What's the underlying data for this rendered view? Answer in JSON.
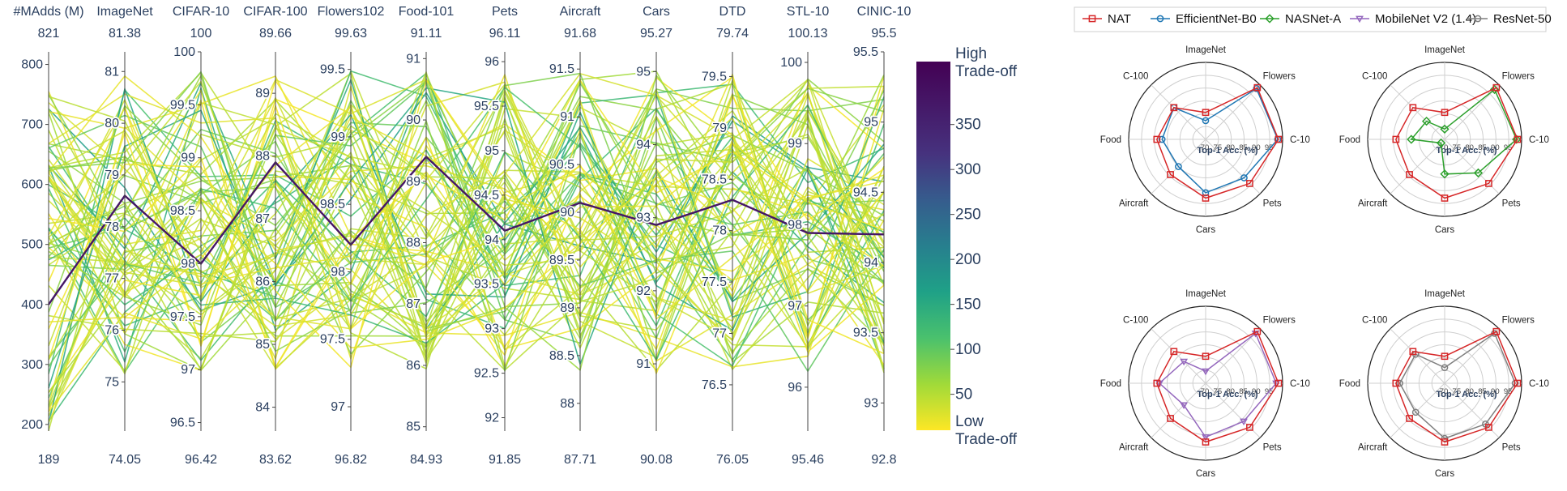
{
  "chart_data": [
    {
      "type": "parallel_coordinates",
      "dimensions": [
        {
          "label": "#MAdds (M)",
          "range": [
            189,
            821
          ],
          "max_label": "821",
          "min_label": "189",
          "ticks": [
            200,
            300,
            400,
            500,
            600,
            700,
            800
          ]
        },
        {
          "label": "ImageNet",
          "range": [
            74.05,
            81.38
          ],
          "max_label": "81.38",
          "min_label": "74.05",
          "ticks": [
            75,
            76,
            77,
            78,
            79,
            80,
            81
          ]
        },
        {
          "label": "CIFAR-10",
          "range": [
            96.42,
            100
          ],
          "max_label": "100",
          "min_label": "96.42",
          "ticks": [
            96.5,
            97,
            97.5,
            98,
            98.5,
            99,
            99.5,
            100
          ]
        },
        {
          "label": "CIFAR-100",
          "range": [
            83.62,
            89.66
          ],
          "max_label": "89.66",
          "min_label": "83.62",
          "ticks": [
            84,
            85,
            86,
            87,
            88,
            89
          ]
        },
        {
          "label": "Flowers102",
          "range": [
            96.82,
            99.63
          ],
          "max_label": "99.63",
          "min_label": "96.82",
          "ticks": [
            97,
            97.5,
            98,
            98.5,
            99,
            99.5
          ]
        },
        {
          "label": "Food-101",
          "range": [
            84.93,
            91.11
          ],
          "max_label": "91.11",
          "min_label": "84.93",
          "ticks": [
            85,
            86,
            87,
            88,
            89,
            90,
            91
          ]
        },
        {
          "label": "Pets",
          "range": [
            91.85,
            96.11
          ],
          "max_label": "96.11",
          "min_label": "91.85",
          "ticks": [
            92,
            92.5,
            93,
            93.5,
            94,
            94.5,
            95,
            95.5,
            96
          ]
        },
        {
          "label": "Aircraft",
          "range": [
            87.71,
            91.68
          ],
          "max_label": "91.68",
          "min_label": "87.71",
          "ticks": [
            88,
            88.5,
            89,
            89.5,
            90,
            90.5,
            91,
            91.5
          ]
        },
        {
          "label": "Cars",
          "range": [
            90.08,
            95.27
          ],
          "max_label": "95.27",
          "min_label": "90.08",
          "ticks": [
            91,
            92,
            93,
            94,
            95
          ]
        },
        {
          "label": "DTD",
          "range": [
            76.05,
            79.74
          ],
          "max_label": "79.74",
          "min_label": "76.05",
          "ticks": [
            76.5,
            77,
            77.5,
            78,
            78.5,
            79,
            79.5
          ]
        },
        {
          "label": "STL-10",
          "range": [
            95.46,
            100.13
          ],
          "max_label": "100.13",
          "min_label": "95.46",
          "ticks": [
            96,
            97,
            98,
            99,
            100
          ]
        },
        {
          "label": "CINIC-10",
          "range": [
            92.8,
            95.5
          ],
          "max_label": "95.5",
          "min_label": "92.8",
          "ticks": [
            93,
            93.5,
            94,
            94.5,
            95,
            95.5
          ]
        }
      ],
      "highlight_line": {
        "values": [
          400,
          78.6,
          98.0,
          87.9,
          98.2,
          89.4,
          94.1,
          90.1,
          92.9,
          78.3,
          97.9,
          94.2
        ],
        "tradeoff": 395
      },
      "colorbar": {
        "title_top": "High\nTrade-off",
        "title_bottom": "Low\nTrade-off",
        "range": [
          10,
          420
        ],
        "ticks": [
          50,
          100,
          150,
          200,
          250,
          300,
          350
        ],
        "colorscale": "viridis_reversed"
      },
      "n_lines_approx": 80
    },
    {
      "type": "radar",
      "legend": [
        {
          "name": "NAT",
          "color": "#d62728",
          "marker": "square"
        },
        {
          "name": "EfficientNet-B0",
          "color": "#1f77b4",
          "marker": "circle"
        },
        {
          "name": "NASNet-A",
          "color": "#2ca02c",
          "marker": "diamond"
        },
        {
          "name": "MobileNet V2 (1.4)",
          "color": "#9467bd",
          "marker": "triangle-down"
        },
        {
          "name": "ResNet-50",
          "color": "#7f7f7f",
          "marker": "circle"
        }
      ],
      "axes": [
        "ImageNet",
        "Flowers",
        "C-10",
        "Pets",
        "Cars",
        "Aircraft",
        "Food",
        "C-100"
      ],
      "radial_range": [
        70,
        100
      ],
      "radial_ticks": [
        "70",
        "75",
        "80",
        "85",
        "90",
        "95"
      ],
      "radial_title": "Top-1 Acc. (%)",
      "panels": [
        {
          "series": [
            {
              "name": "NAT",
              "values": [
                80.5,
                98.5,
                98.4,
                94.3,
                92.9,
                89.4,
                89.0,
                87.5
              ]
            },
            {
              "name": "EfficientNet-B0",
              "values": [
                77.3,
                98.0,
                98.1,
                91.2,
                90.8,
                85.0,
                87.0,
                87.5
              ]
            }
          ]
        },
        {
          "series": [
            {
              "name": "NAT",
              "values": [
                80.5,
                98.5,
                98.4,
                94.3,
                92.9,
                89.4,
                89.0,
                87.5
              ]
            },
            {
              "name": "NASNet-A",
              "values": [
                74.0,
                97.5,
                98.0,
                88.5,
                83.5,
                72.0,
                83.0,
                80.0
              ]
            }
          ]
        },
        {
          "series": [
            {
              "name": "NAT",
              "values": [
                80.5,
                98.5,
                98.4,
                94.3,
                92.9,
                89.4,
                89.0,
                87.5
              ]
            },
            {
              "name": "MobileNet V2 (1.4)",
              "values": [
                74.7,
                97.5,
                97.5,
                91.0,
                91.0,
                82.0,
                88.0,
                82.0
              ]
            }
          ]
        },
        {
          "series": [
            {
              "name": "NAT",
              "values": [
                80.5,
                98.5,
                98.4,
                94.3,
                92.9,
                89.4,
                89.0,
                87.5
              ]
            },
            {
              "name": "ResNet-50",
              "values": [
                76.1,
                97.5,
                97.5,
                92.5,
                91.5,
                86.0,
                87.5,
                86.0
              ]
            }
          ]
        }
      ]
    }
  ]
}
